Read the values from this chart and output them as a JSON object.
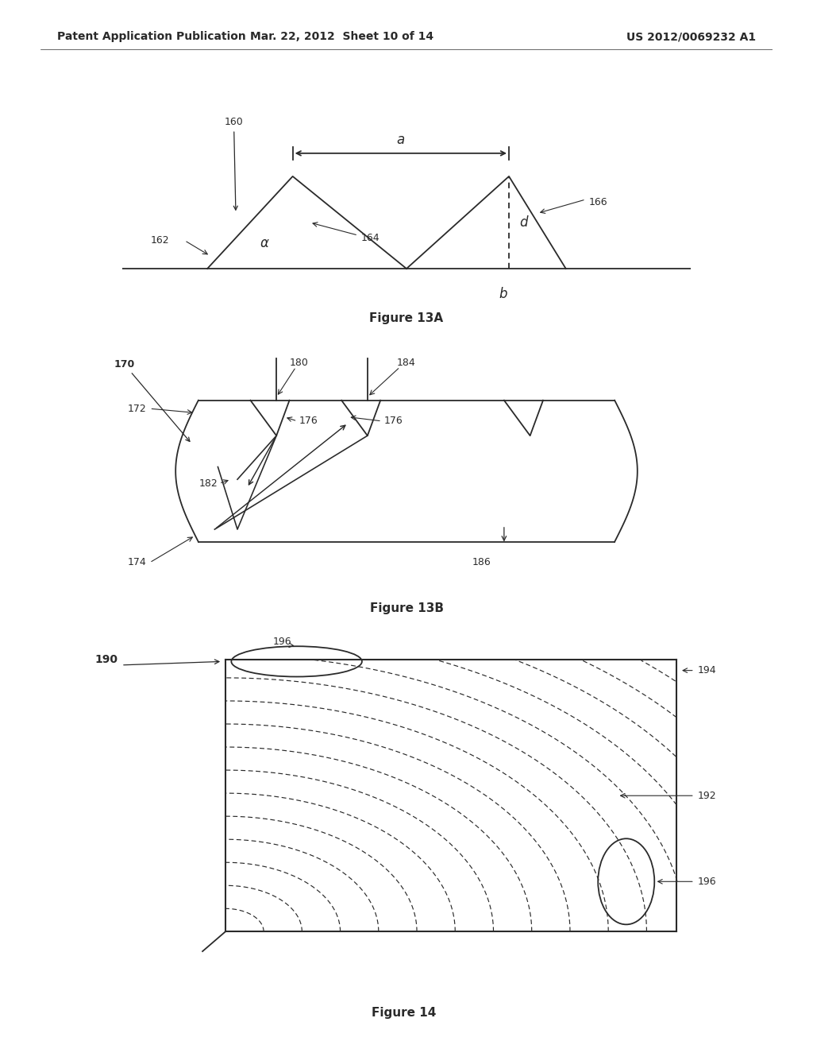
{
  "background_color": "#ffffff",
  "page_header": {
    "left": "Patent Application Publication",
    "center": "Mar. 22, 2012  Sheet 10 of 14",
    "right": "US 2012/0069232 A1",
    "fontsize": 10
  },
  "line_color": "#2a2a2a",
  "line_width": 1.3,
  "label_fontsize": 9,
  "figure_label_fontsize": 11,
  "fig13A": {
    "label": "Figure 13A"
  },
  "fig13B": {
    "label": "Figure 13B"
  },
  "fig14": {
    "label": "Figure 14",
    "num_arcs": 17
  }
}
